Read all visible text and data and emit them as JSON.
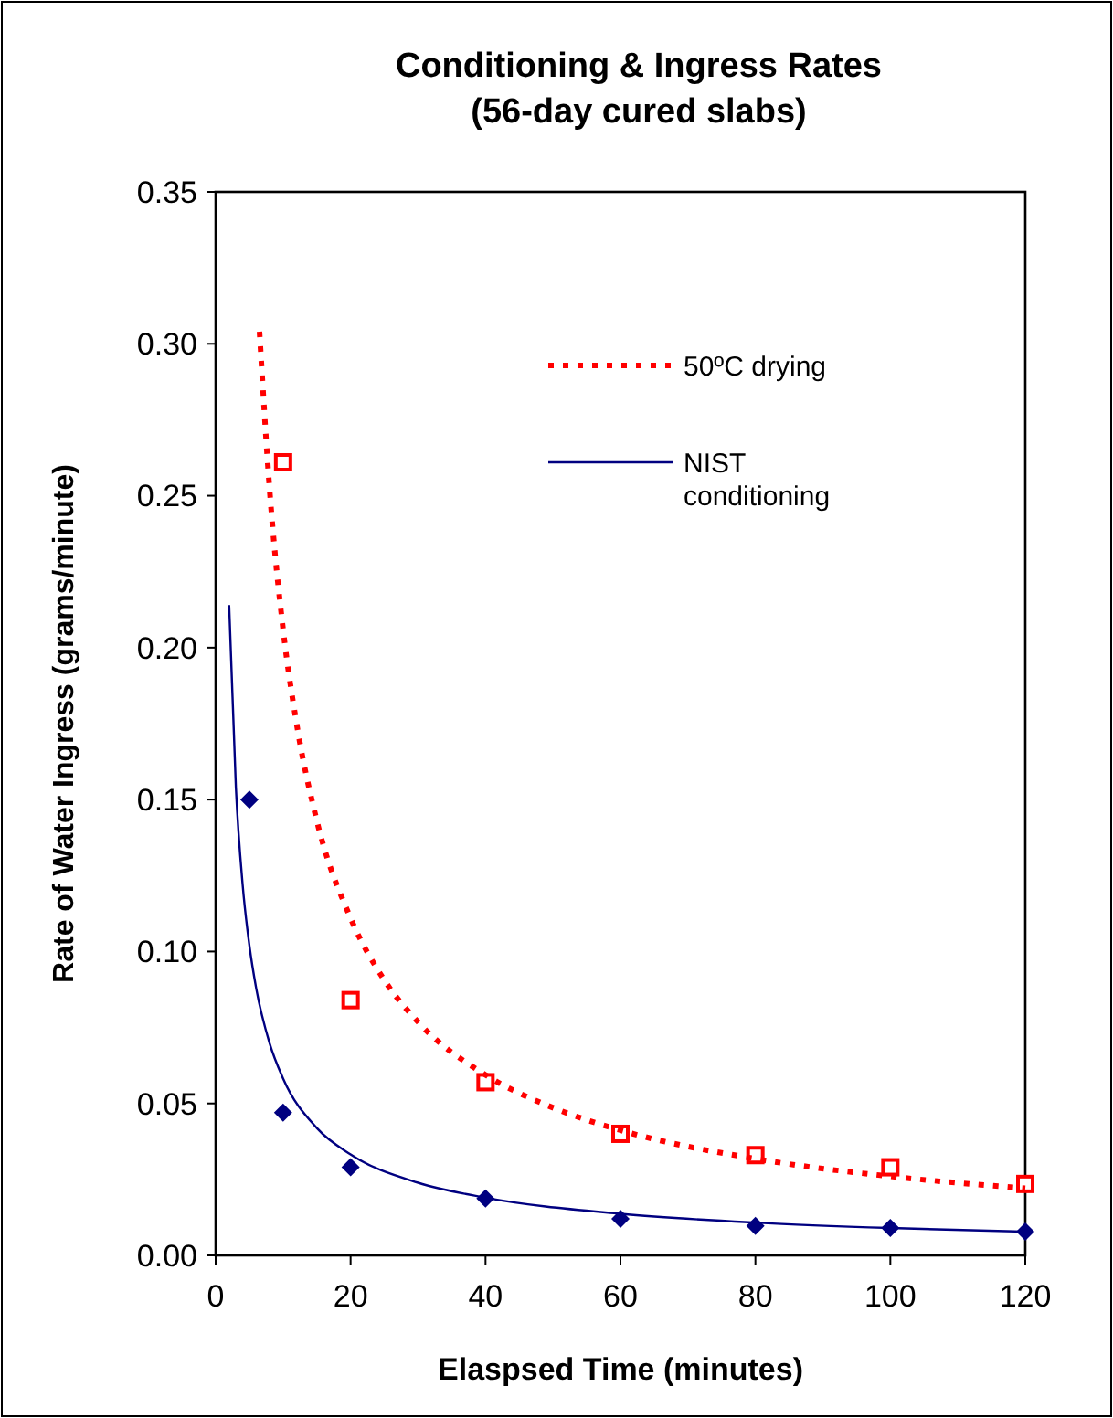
{
  "chart_data": {
    "type": "scatter",
    "title": "Conditioning & Ingress Rates\n(56-day cured slabs)",
    "xlabel": "Elaspsed Time (minutes)",
    "ylabel": "Rate of Water Ingress (grams/minute)",
    "xlim": [
      0,
      120
    ],
    "xticks": [
      0,
      20,
      40,
      60,
      80,
      100,
      120
    ],
    "ylim": [
      0,
      0.35
    ],
    "yticks": [
      {
        "value": 0,
        "label": "0.00"
      },
      {
        "value": 0.05,
        "label": "0.05"
      },
      {
        "value": 0.1,
        "label": "0.10"
      },
      {
        "value": 0.15,
        "label": "0.15"
      },
      {
        "value": 0.2,
        "label": "0.20"
      },
      {
        "value": 0.25,
        "label": "0.25"
      },
      {
        "value": 0.3,
        "label": "0.30"
      },
      {
        "value": 0.35,
        "label": "0.35"
      }
    ],
    "grid": false,
    "legend": "top right",
    "series": [
      {
        "color": "#ff0000",
        "marker": "square",
        "x": [
          10,
          20,
          40,
          60,
          80,
          100,
          120
        ],
        "values": [
          0.261,
          0.084,
          0.057,
          0.04,
          0.033,
          0.029,
          0.0235
        ]
      },
      {
        "color": "#000080",
        "marker": "diamond",
        "x": [
          5,
          10,
          20,
          40,
          60,
          80,
          100,
          120
        ],
        "values": [
          0.15,
          0.047,
          0.029,
          0.0187,
          0.012,
          0.0097,
          0.009,
          0.0078
        ]
      },
      {
        "type": "line",
        "name": "50ºC drying",
        "color": "#ff0000",
        "line_style": "dotted",
        "marker": "none",
        "x": [
          6.5,
          8,
          10,
          12,
          15,
          20,
          25,
          30,
          40,
          50,
          60,
          80,
          100,
          120
        ],
        "values": [
          0.304,
          0.252,
          0.206,
          0.175,
          0.143,
          0.111,
          0.0906,
          0.0768,
          0.0594,
          0.0486,
          0.0412,
          0.0318,
          0.026,
          0.0221
        ]
      },
      {
        "type": "line",
        "name": "NIST conditioning",
        "color": "#000080",
        "line_style": "solid",
        "marker": "none",
        "x": [
          2,
          3,
          4,
          5,
          6,
          8,
          10,
          15,
          20,
          30,
          40,
          60,
          80,
          100,
          120
        ],
        "values": [
          0.214,
          0.154,
          0.122,
          0.102,
          0.088,
          0.0698,
          0.0582,
          0.0419,
          0.0332,
          0.0239,
          0.019,
          0.0137,
          0.0108,
          0.009,
          0.0078
        ]
      }
    ]
  }
}
